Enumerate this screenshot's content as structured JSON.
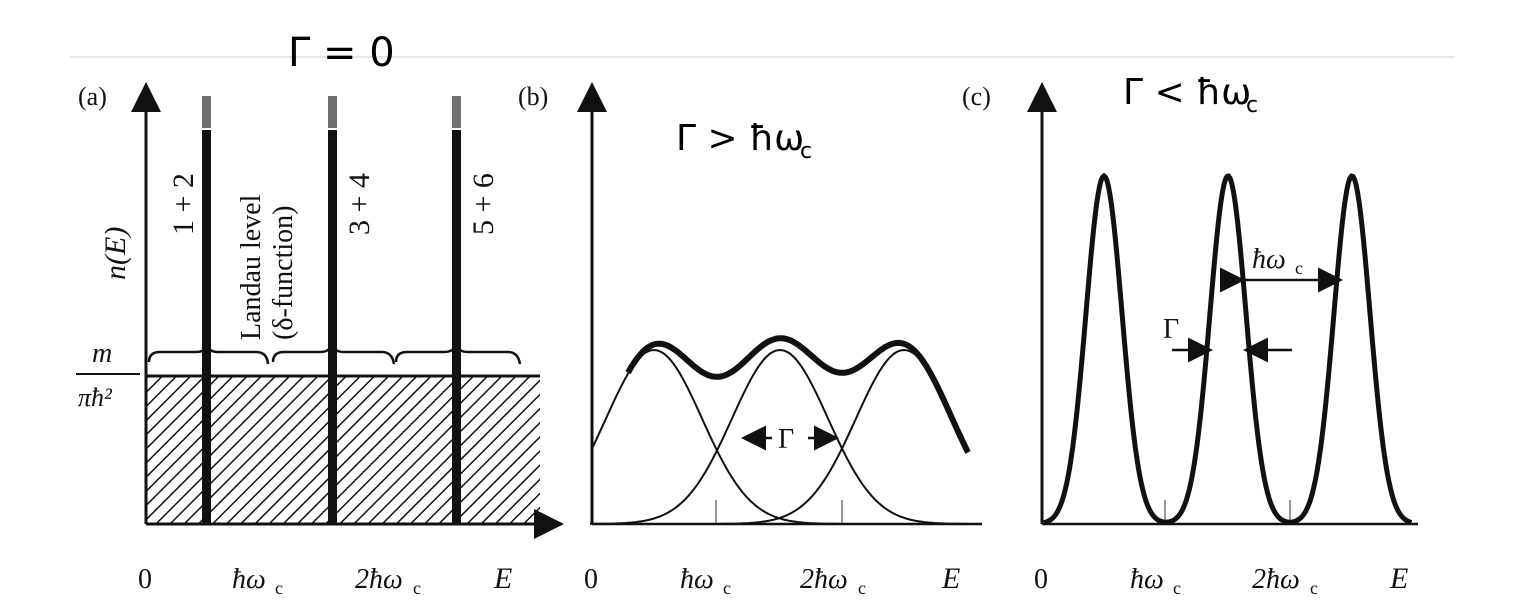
{
  "panels": {
    "a": {
      "tag": "(a)",
      "ylabel": "n(E)",
      "level_labels": [
        "1 + 2",
        "3 + 4",
        "5 + 6"
      ],
      "landau_label": "Landau level",
      "delta_label": "(δ-function)",
      "dos_num": "m",
      "dos_den": "πħ²",
      "x_ticks": [
        "0",
        "ħω",
        "2ħω",
        "E"
      ],
      "tick_sub": "c"
    },
    "b": {
      "tag": "(b)",
      "gamma": "Γ",
      "x_ticks": [
        "0",
        "ħω",
        "2ħω",
        "E"
      ],
      "tick_sub": "c"
    },
    "c": {
      "tag": "(c)",
      "gamma": "Γ",
      "spacing_label": "ħω",
      "spacing_sub": "c",
      "x_ticks": [
        "0",
        "ħω",
        "2ħω",
        "E"
      ],
      "tick_sub": "c"
    }
  },
  "handwriting": {
    "a": "Γ = 0",
    "b": "Γ > ħω",
    "b_sub": "c",
    "c": "Γ < ħω",
    "c_sub": "c"
  },
  "colors": {
    "ink": "#111111",
    "hand": "#000000",
    "rule": "#e6e6e6"
  }
}
